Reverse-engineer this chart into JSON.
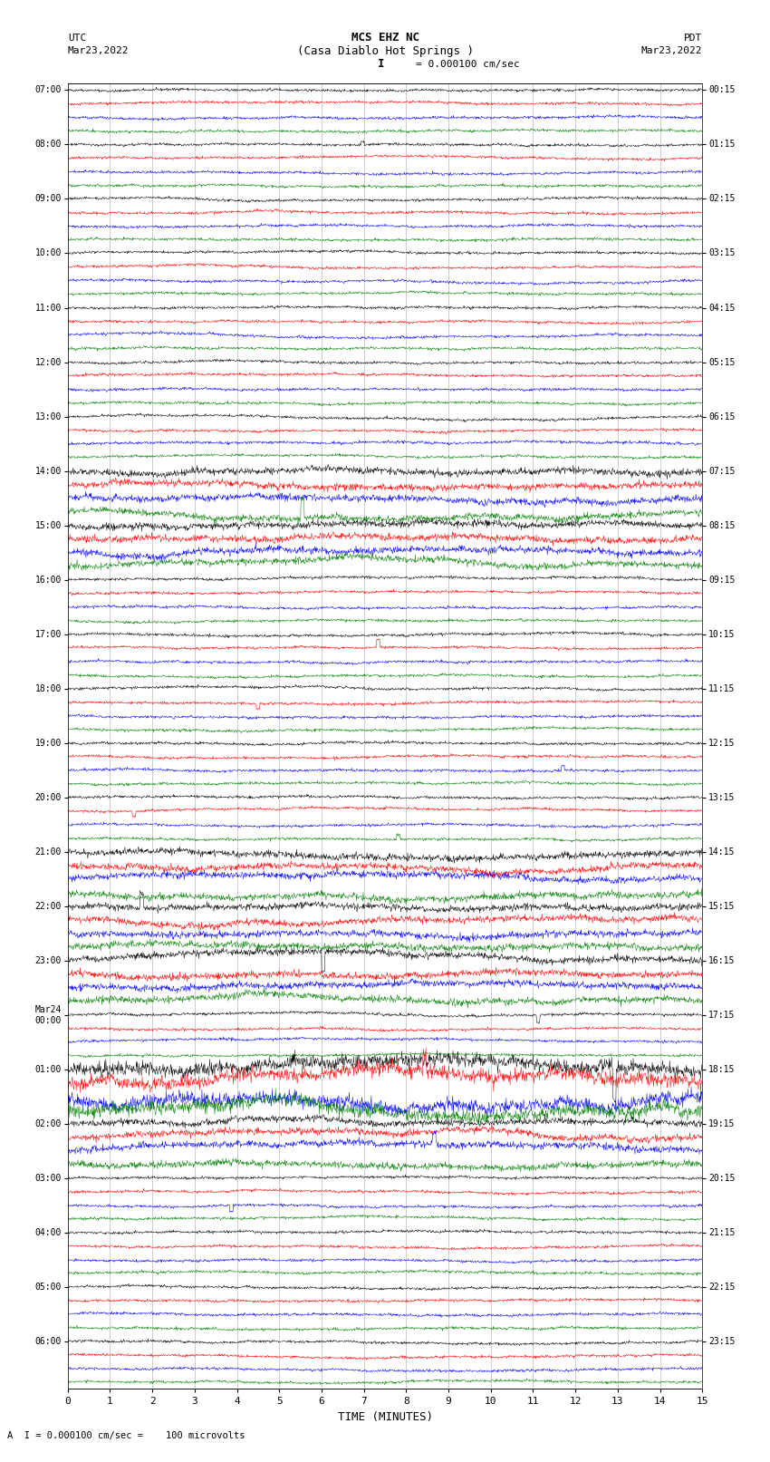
{
  "title_line1": "MCS EHZ NC",
  "title_line2": "(Casa Diablo Hot Springs )",
  "scale_label": "I = 0.000100 cm/sec",
  "left_header": "UTC",
  "left_date": "Mar23,2022",
  "right_header": "PDT",
  "right_date": "Mar23,2022",
  "xlabel": "TIME (MINUTES)",
  "footer": "A  I = 0.000100 cm/sec =    100 microvolts",
  "xlim": [
    0,
    15
  ],
  "xticks": [
    0,
    1,
    2,
    3,
    4,
    5,
    6,
    7,
    8,
    9,
    10,
    11,
    12,
    13,
    14,
    15
  ],
  "utc_labels": [
    "07:00",
    "08:00",
    "09:00",
    "10:00",
    "11:00",
    "12:00",
    "13:00",
    "14:00",
    "15:00",
    "16:00",
    "17:00",
    "18:00",
    "19:00",
    "20:00",
    "21:00",
    "22:00",
    "23:00",
    "Mar24\n00:00",
    "01:00",
    "02:00",
    "03:00",
    "04:00",
    "05:00",
    "06:00"
  ],
  "pdt_labels": [
    "00:15",
    "01:15",
    "02:15",
    "03:15",
    "04:15",
    "05:15",
    "06:15",
    "07:15",
    "08:15",
    "09:15",
    "10:15",
    "11:15",
    "12:15",
    "13:15",
    "14:15",
    "15:15",
    "16:15",
    "17:15",
    "18:15",
    "19:15",
    "20:15",
    "21:15",
    "22:15",
    "23:15"
  ],
  "trace_colors": [
    "black",
    "red",
    "blue",
    "green"
  ],
  "n_groups": 24,
  "traces_per_group": 4,
  "noise_amplitude": 0.12,
  "bg_color": "white",
  "seed": 42,
  "high_activity_groups": [
    7,
    8,
    14,
    15,
    16,
    18,
    19
  ],
  "very_high_groups": [
    18
  ]
}
